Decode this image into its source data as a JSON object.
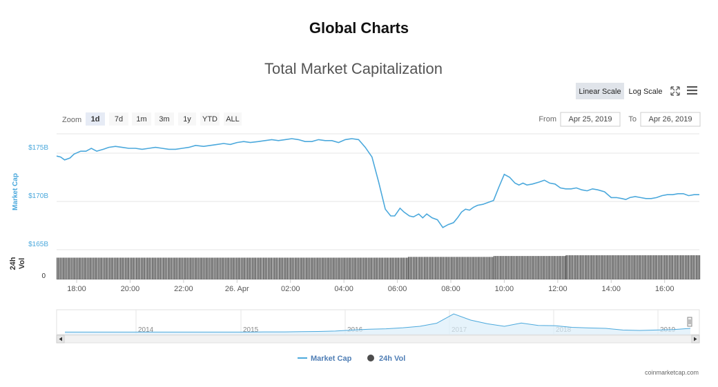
{
  "page": {
    "title": "Global Charts"
  },
  "chart_data": {
    "type": "line",
    "title": "Total Market Capitalization",
    "ylabel": "Market Cap",
    "ylabel_volume": "24h Vol",
    "volume_tick": "0",
    "ylim": [
      165,
      177
    ],
    "y_ticks": [
      {
        "value": 175,
        "label": "$175B"
      },
      {
        "value": 170,
        "label": "$170B"
      },
      {
        "value": 165,
        "label": "$165B"
      }
    ],
    "x_range_hours": [
      17.25,
      41.3
    ],
    "x_ticks": [
      {
        "hour": 18,
        "label": "18:00"
      },
      {
        "hour": 20,
        "label": "20:00"
      },
      {
        "hour": 22,
        "label": "22:00"
      },
      {
        "hour": 24,
        "label": "26. Apr"
      },
      {
        "hour": 26,
        "label": "02:00"
      },
      {
        "hour": 28,
        "label": "04:00"
      },
      {
        "hour": 30,
        "label": "06:00"
      },
      {
        "hour": 32,
        "label": "08:00"
      },
      {
        "hour": 34,
        "label": "10:00"
      },
      {
        "hour": 36,
        "label": "12:00"
      },
      {
        "hour": 38,
        "label": "14:00"
      },
      {
        "hour": 40,
        "label": "16:00"
      }
    ],
    "series": [
      {
        "name": "Market Cap",
        "color": "#4aa8dc",
        "x": [
          17.25,
          17.4,
          17.55,
          17.75,
          17.9,
          18.15,
          18.35,
          18.55,
          18.75,
          19.0,
          19.2,
          19.45,
          19.7,
          19.95,
          20.2,
          20.45,
          20.7,
          20.95,
          21.2,
          21.45,
          21.7,
          21.95,
          22.2,
          22.45,
          22.75,
          23.0,
          23.25,
          23.5,
          23.75,
          24.0,
          24.25,
          24.5,
          24.8,
          25.05,
          25.3,
          25.55,
          25.8,
          26.05,
          26.3,
          26.55,
          26.8,
          27.05,
          27.3,
          27.55,
          27.8,
          28.05,
          28.3,
          28.55,
          28.8,
          29.05,
          29.3,
          29.55,
          29.75,
          29.9,
          30.0,
          30.1,
          30.25,
          30.45,
          30.6,
          30.8,
          30.95,
          31.1,
          31.3,
          31.5,
          31.7,
          31.9,
          32.1,
          32.25,
          32.4,
          32.55,
          32.7,
          32.85,
          33.0,
          33.2,
          33.4,
          33.6,
          33.8,
          34.0,
          34.2,
          34.4,
          34.55,
          34.7,
          34.85,
          35.05,
          35.3,
          35.5,
          35.7,
          35.9,
          36.1,
          36.3,
          36.5,
          36.7,
          36.9,
          37.1,
          37.3,
          37.5,
          37.75,
          38.0,
          38.2,
          38.4,
          38.55,
          38.7,
          38.9,
          39.1,
          39.3,
          39.5,
          39.7,
          39.9,
          40.1,
          40.3,
          40.5,
          40.7,
          40.9,
          41.1,
          41.3
        ],
        "y": [
          174.7,
          174.6,
          174.3,
          174.5,
          174.9,
          175.2,
          175.2,
          175.5,
          175.2,
          175.4,
          175.6,
          175.7,
          175.6,
          175.5,
          175.5,
          175.4,
          175.5,
          175.6,
          175.5,
          175.4,
          175.4,
          175.5,
          175.6,
          175.8,
          175.7,
          175.8,
          175.9,
          176.0,
          175.9,
          176.1,
          176.2,
          176.1,
          176.2,
          176.3,
          176.4,
          176.3,
          176.4,
          176.5,
          176.4,
          176.2,
          176.2,
          176.4,
          176.3,
          176.3,
          176.1,
          176.4,
          176.5,
          176.4,
          175.6,
          174.6,
          172.0,
          169.2,
          168.5,
          168.5,
          168.9,
          169.3,
          168.9,
          168.5,
          168.4,
          168.7,
          168.3,
          168.7,
          168.3,
          168.1,
          167.3,
          167.6,
          167.8,
          168.3,
          168.9,
          169.2,
          169.1,
          169.4,
          169.6,
          169.7,
          169.9,
          170.1,
          171.5,
          172.8,
          172.5,
          171.9,
          171.7,
          171.9,
          171.7,
          171.8,
          172.0,
          172.2,
          171.9,
          171.8,
          171.4,
          171.3,
          171.3,
          171.4,
          171.2,
          171.1,
          171.3,
          171.2,
          171.0,
          170.4,
          170.4,
          170.3,
          170.2,
          170.4,
          170.5,
          170.4,
          170.3,
          170.3,
          170.4,
          170.6,
          170.7,
          170.7,
          170.8,
          170.8,
          170.6,
          170.7,
          170.7
        ]
      },
      {
        "name": "24h Vol",
        "color": "#4d4d4d",
        "segments": [
          {
            "from": 17.25,
            "to": 30.4,
            "level": 0.9
          },
          {
            "from": 30.4,
            "to": 33.6,
            "level": 0.93
          },
          {
            "from": 33.6,
            "to": 36.3,
            "level": 0.97
          },
          {
            "from": 36.3,
            "to": 41.3,
            "level": 1.0
          }
        ]
      }
    ],
    "navigator": {
      "year_labels": [
        "2014",
        "2015",
        "2016",
        "2017",
        "2018",
        "2019"
      ],
      "series": [
        0.02,
        0.02,
        0.02,
        0.02,
        0.02,
        0.02,
        0.02,
        0.02,
        0.02,
        0.02,
        0.02,
        0.02,
        0.03,
        0.03,
        0.04,
        0.05,
        0.07,
        0.12,
        0.16,
        0.18,
        0.23,
        0.3,
        0.45,
        0.9,
        0.6,
        0.42,
        0.3,
        0.46,
        0.34,
        0.33,
        0.25,
        0.22,
        0.2,
        0.12,
        0.1,
        0.12,
        0.14,
        0.2
      ]
    },
    "controls": {
      "scale_buttons": [
        {
          "label": "Linear Scale",
          "active": true
        },
        {
          "label": "Log Scale",
          "active": false
        }
      ],
      "zoom_label": "Zoom",
      "zoom_buttons": [
        "1d",
        "7d",
        "1m",
        "3m",
        "1y",
        "YTD",
        "ALL"
      ],
      "zoom_active": "1d",
      "from_label": "From",
      "from_value": "Apr 25, 2019",
      "to_label": "To",
      "to_value": "Apr 26, 2019",
      "fullscreen_icon": "expand-icon",
      "menu_icon": "hamburger-menu-icon"
    },
    "legend": [
      {
        "name": "Market Cap",
        "symbol": "line",
        "color": "#4aa8dc"
      },
      {
        "name": "24h Vol",
        "symbol": "circle",
        "color": "#4d4d4d"
      }
    ],
    "grid": true,
    "credit": "coinmarketcap.com"
  }
}
